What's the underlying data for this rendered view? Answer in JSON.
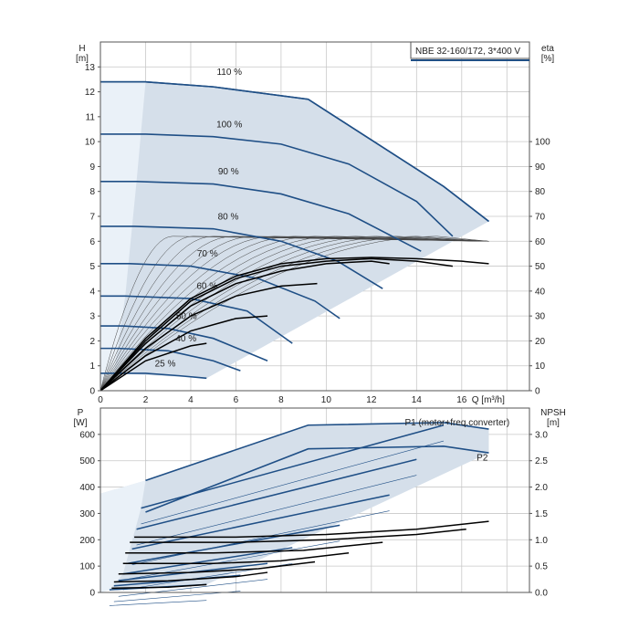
{
  "chart_data": [
    {
      "type": "line",
      "title": "NBE 32-160/172, 3*400 V",
      "xlabel": "Q [m³/h]",
      "ylabel": "H\n[m]",
      "y2label": "eta\n[%]",
      "xlim": [
        0,
        19
      ],
      "ylim": [
        0,
        14
      ],
      "y2lim": [
        0,
        140
      ],
      "xticks": [
        0,
        2,
        4,
        6,
        8,
        10,
        12,
        14,
        16
      ],
      "yticks": [
        0,
        1,
        2,
        3,
        4,
        5,
        6,
        7,
        8,
        9,
        10,
        11,
        12,
        13
      ],
      "y2ticks": [
        0,
        10,
        20,
        30,
        40,
        50,
        60,
        70,
        80,
        90,
        100
      ],
      "grid": true,
      "series": [
        {
          "name": "110 %",
          "x": [
            0,
            2,
            5,
            9.2,
            15.2,
            17.2
          ],
          "y": [
            12.4,
            12.4,
            12.2,
            11.7,
            8.2,
            6.8
          ]
        },
        {
          "name": "100 %",
          "x": [
            0,
            2,
            5,
            8,
            11,
            14,
            15.6
          ],
          "y": [
            10.3,
            10.3,
            10.2,
            9.9,
            9.1,
            7.6,
            6.2
          ]
        },
        {
          "name": "90 %",
          "x": [
            0,
            1.6,
            5,
            8,
            11,
            14.2
          ],
          "y": [
            8.4,
            8.4,
            8.3,
            7.9,
            7.1,
            5.6
          ]
        },
        {
          "name": "80 %",
          "x": [
            0,
            1.5,
            5,
            8,
            10.5,
            12.5
          ],
          "y": [
            6.6,
            6.6,
            6.5,
            6.0,
            5.2,
            4.1
          ]
        },
        {
          "name": "70 %",
          "x": [
            0,
            1.3,
            4,
            7,
            9.5,
            10.6
          ],
          "y": [
            5.1,
            5.1,
            5.0,
            4.5,
            3.6,
            2.9
          ]
        },
        {
          "name": "60 %",
          "x": [
            0,
            1.1,
            4,
            6.5,
            8.5
          ],
          "y": [
            3.8,
            3.8,
            3.7,
            3.2,
            1.9
          ]
        },
        {
          "name": "50 %",
          "x": [
            0,
            1,
            3,
            5,
            7.4
          ],
          "y": [
            2.6,
            2.6,
            2.5,
            2.1,
            1.2
          ]
        },
        {
          "name": "40 %",
          "x": [
            0,
            0.8,
            3,
            5,
            6.2
          ],
          "y": [
            1.7,
            1.7,
            1.6,
            1.2,
            0.8
          ]
        },
        {
          "name": "25 %",
          "x": [
            0,
            0.6,
            2,
            3.5,
            4.7
          ],
          "y": [
            0.7,
            0.7,
            0.7,
            0.6,
            0.5
          ]
        }
      ],
      "efficiency_series": [
        {
          "x": [
            0,
            2,
            4,
            4.7
          ],
          "y": [
            0,
            12,
            18,
            19
          ]
        },
        {
          "x": [
            0,
            2,
            4,
            6,
            7.4
          ],
          "y": [
            0,
            14,
            24,
            29,
            30
          ]
        },
        {
          "x": [
            0,
            2,
            4,
            6,
            8,
            9.6
          ],
          "y": [
            0,
            17,
            30,
            38,
            42,
            43
          ]
        },
        {
          "x": [
            0,
            2,
            4,
            6,
            8,
            10,
            12,
            12.8
          ],
          "y": [
            0,
            19,
            34,
            43,
            48,
            51,
            52,
            51
          ]
        },
        {
          "x": [
            0,
            2,
            4,
            6,
            8,
            10,
            12,
            14,
            15.6
          ],
          "y": [
            0,
            20,
            36,
            45,
            50,
            52,
            53,
            52,
            50
          ]
        },
        {
          "x": [
            0,
            2,
            4,
            6,
            8,
            10,
            12,
            14,
            16,
            17.2
          ],
          "y": [
            0,
            21,
            37,
            46,
            51,
            53,
            53.5,
            53,
            52,
            51
          ]
        }
      ]
    },
    {
      "type": "line",
      "xlabel": "",
      "ylabel": "P\n[W]",
      "y2label": "NPSH\n[m]",
      "xlim": [
        0,
        19
      ],
      "ylim": [
        0,
        700
      ],
      "y2lim": [
        0,
        3.5
      ],
      "yticks": [
        0,
        100,
        200,
        300,
        400,
        500,
        600
      ],
      "y2ticks": [
        "0.0",
        "0.5",
        "1.0",
        "1.5",
        "2.0",
        "2.5",
        "3.0"
      ],
      "grid": true,
      "series": [
        {
          "name": "P1 (motor+freq.converter)",
          "x": [
            2,
            9.2,
            15.2,
            17.2
          ],
          "y": [
            425,
            635,
            645,
            620
          ]
        },
        {
          "name": "P2",
          "x": [
            2,
            9.2,
            15.2,
            17.2
          ],
          "y": [
            305,
            545,
            555,
            530
          ]
        }
      ],
      "power_series": [
        {
          "x": [
            1.8,
            15.2
          ],
          "y": [
            320,
            635
          ]
        },
        {
          "x": [
            1.6,
            14
          ],
          "y": [
            240,
            505
          ]
        },
        {
          "x": [
            1.4,
            12.8
          ],
          "y": [
            165,
            370
          ]
        },
        {
          "x": [
            1.2,
            10.6
          ],
          "y": [
            110,
            255
          ]
        },
        {
          "x": [
            1,
            8.5
          ],
          "y": [
            70,
            170
          ]
        },
        {
          "x": [
            0.8,
            7.4
          ],
          "y": [
            45,
            110
          ]
        },
        {
          "x": [
            0.6,
            6.2
          ],
          "y": [
            25,
            65
          ]
        },
        {
          "x": [
            0.4,
            4.7
          ],
          "y": [
            10,
            30
          ]
        }
      ],
      "npsh_series": [
        {
          "x": [
            1.5,
            6,
            10,
            14,
            17.2
          ],
          "y": [
            1.05,
            1.05,
            1.1,
            1.2,
            1.35
          ]
        },
        {
          "x": [
            1.3,
            6,
            10,
            14,
            16.2
          ],
          "y": [
            0.95,
            0.95,
            1.0,
            1.1,
            1.2
          ]
        },
        {
          "x": [
            1.1,
            5,
            9,
            12.5
          ],
          "y": [
            0.75,
            0.75,
            0.8,
            0.95
          ]
        },
        {
          "x": [
            1,
            5,
            8,
            11
          ],
          "y": [
            0.55,
            0.55,
            0.6,
            0.75
          ]
        },
        {
          "x": [
            0.8,
            4,
            7,
            9.5
          ],
          "y": [
            0.35,
            0.38,
            0.45,
            0.58
          ]
        },
        {
          "x": [
            0.6,
            3,
            6,
            7.4
          ],
          "y": [
            0.2,
            0.22,
            0.3,
            0.38
          ]
        },
        {
          "x": [
            0.5,
            3,
            4.7
          ],
          "y": [
            0.08,
            0.1,
            0.15
          ]
        }
      ]
    }
  ]
}
